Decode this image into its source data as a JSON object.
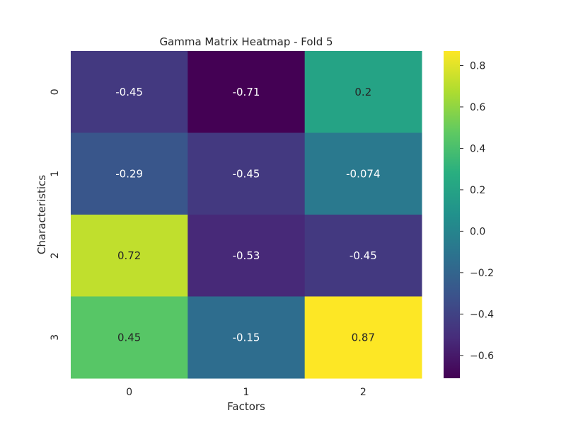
{
  "chart_data": {
    "type": "heatmap",
    "title": "Gamma Matrix Heatmap - Fold 5",
    "xlabel": "Factors",
    "ylabel": "Characteristics",
    "x_categories": [
      "0",
      "1",
      "2"
    ],
    "y_categories": [
      "0",
      "1",
      "2",
      "3"
    ],
    "values": [
      [
        -0.45,
        -0.71,
        0.2
      ],
      [
        -0.29,
        -0.45,
        -0.074
      ],
      [
        0.72,
        -0.53,
        -0.45
      ],
      [
        0.45,
        -0.15,
        0.87
      ]
    ],
    "value_labels": [
      [
        "-0.45",
        "-0.71",
        "0.2"
      ],
      [
        "-0.29",
        "-0.45",
        "-0.074"
      ],
      [
        "0.72",
        "-0.53",
        "-0.45"
      ],
      [
        "0.45",
        "-0.15",
        "0.87"
      ]
    ],
    "colormap": "viridis",
    "vmin": -0.71,
    "vmax": 0.87,
    "colorbar_ticks": [
      -0.6,
      -0.4,
      -0.2,
      0.0,
      0.2,
      0.4,
      0.6,
      0.8
    ],
    "colorbar_tick_labels": [
      "−0.6",
      "−0.4",
      "−0.2",
      "0.0",
      "0.2",
      "0.4",
      "0.6",
      "0.8"
    ],
    "grid": false,
    "colorbar_position": "right"
  }
}
